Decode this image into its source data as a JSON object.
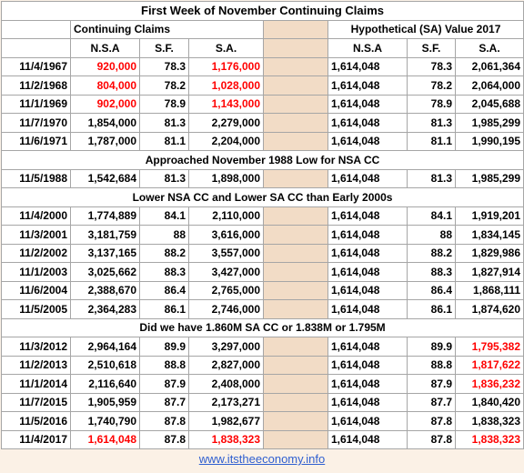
{
  "title": "First Week of November Continuing Claims",
  "group_headers": [
    "Continuing Claims",
    "Hypothetical (SA) Value 2017"
  ],
  "column_headers": [
    "N.S.A",
    "S.F.",
    "S.A.",
    "N.S.A",
    "S.F.",
    "S.A."
  ],
  "sections": [
    {
      "rows": [
        {
          "date": "11/4/1967",
          "left": [
            {
              "text": "920,000",
              "color": "#ff0000"
            },
            "78.3",
            {
              "text": "1,176,000",
              "color": "#ff0000"
            }
          ],
          "right": [
            "1,614,048",
            "78.3",
            "2,061,364"
          ]
        },
        {
          "date": "11/2/1968",
          "left": [
            {
              "text": "804,000",
              "color": "#ff0000"
            },
            "78.2",
            {
              "text": "1,028,000",
              "color": "#ff0000"
            }
          ],
          "right": [
            "1,614,048",
            "78.2",
            "2,064,000"
          ]
        },
        {
          "date": "11/1/1969",
          "left": [
            {
              "text": "902,000",
              "color": "#ff0000"
            },
            "78.9",
            {
              "text": "1,143,000",
              "color": "#ff0000"
            }
          ],
          "right": [
            "1,614,048",
            "78.9",
            "2,045,688"
          ]
        },
        {
          "date": "11/7/1970",
          "left": [
            "1,854,000",
            "81.3",
            "2,279,000"
          ],
          "right": [
            "1,614,048",
            "81.3",
            "1,985,299"
          ]
        },
        {
          "date": "11/6/1971",
          "left": [
            "1,787,000",
            "81.1",
            "2,204,000"
          ],
          "right": [
            "1,614,048",
            "81.1",
            "1,990,195"
          ]
        }
      ]
    },
    {
      "heading": "Approached November 1988 Low for NSA CC",
      "rows": [
        {
          "date": "11/5/1988",
          "left": [
            "1,542,684",
            "81.3",
            "1,898,000"
          ],
          "right": [
            "1,614,048",
            "81.3",
            "1,985,299"
          ]
        }
      ]
    },
    {
      "heading": "Lower NSA CC and Lower SA CC than Early 2000s",
      "rows": [
        {
          "date": "11/4/2000",
          "left": [
            "1,774,889",
            "84.1",
            "2,110,000"
          ],
          "right": [
            "1,614,048",
            "84.1",
            "1,919,201"
          ]
        },
        {
          "date": "11/3/2001",
          "left": [
            "3,181,759",
            "88",
            "3,616,000"
          ],
          "right": [
            "1,614,048",
            "88",
            "1,834,145"
          ]
        },
        {
          "date": "11/2/2002",
          "left": [
            "3,137,165",
            "88.2",
            "3,557,000"
          ],
          "right": [
            "1,614,048",
            "88.2",
            "1,829,986"
          ]
        },
        {
          "date": "11/1/2003",
          "left": [
            "3,025,662",
            "88.3",
            "3,427,000"
          ],
          "right": [
            "1,614,048",
            "88.3",
            "1,827,914"
          ]
        },
        {
          "date": "11/6/2004",
          "left": [
            "2,388,670",
            "86.4",
            "2,765,000"
          ],
          "right": [
            "1,614,048",
            "86.4",
            "1,868,111"
          ]
        },
        {
          "date": "11/5/2005",
          "left": [
            "2,364,283",
            "86.1",
            "2,746,000"
          ],
          "right": [
            "1,614,048",
            "86.1",
            "1,874,620"
          ]
        }
      ]
    },
    {
      "heading": "Did we have 1.860M SA CC or 1.838M or 1.795M",
      "rows": [
        {
          "date": "11/3/2012",
          "left": [
            "2,964,164",
            "89.9",
            "3,297,000"
          ],
          "right": [
            "1,614,048",
            "89.9",
            {
              "text": "1,795,382",
              "color": "#ff0000"
            }
          ]
        },
        {
          "date": "11/2/2013",
          "left": [
            "2,510,618",
            "88.8",
            "2,827,000"
          ],
          "right": [
            "1,614,048",
            "88.8",
            {
              "text": "1,817,622",
              "color": "#ff0000"
            }
          ]
        },
        {
          "date": "11/1/2014",
          "left": [
            "2,116,640",
            "87.9",
            "2,408,000"
          ],
          "right": [
            "1,614,048",
            "87.9",
            {
              "text": "1,836,232",
              "color": "#ff0000"
            }
          ]
        },
        {
          "date": "11/7/2015",
          "left": [
            "1,905,959",
            "87.7",
            "2,173,271"
          ],
          "right": [
            "1,614,048",
            "87.7",
            "1,840,420"
          ]
        },
        {
          "date": "11/5/2016",
          "left": [
            "1,740,790",
            "87.8",
            "1,982,677"
          ],
          "right": [
            "1,614,048",
            "87.8",
            "1,838,323"
          ]
        },
        {
          "date": "11/4/2017",
          "left": [
            {
              "text": "1,614,048",
              "color": "#ff0000"
            },
            "87.8",
            {
              "text": "1,838,323",
              "color": "#ff0000"
            }
          ],
          "right": [
            "1,614,048",
            "87.8",
            {
              "text": "1,838,323",
              "color": "#ff0000"
            }
          ]
        }
      ]
    }
  ],
  "footer": "www.itstheeconomy.info"
}
